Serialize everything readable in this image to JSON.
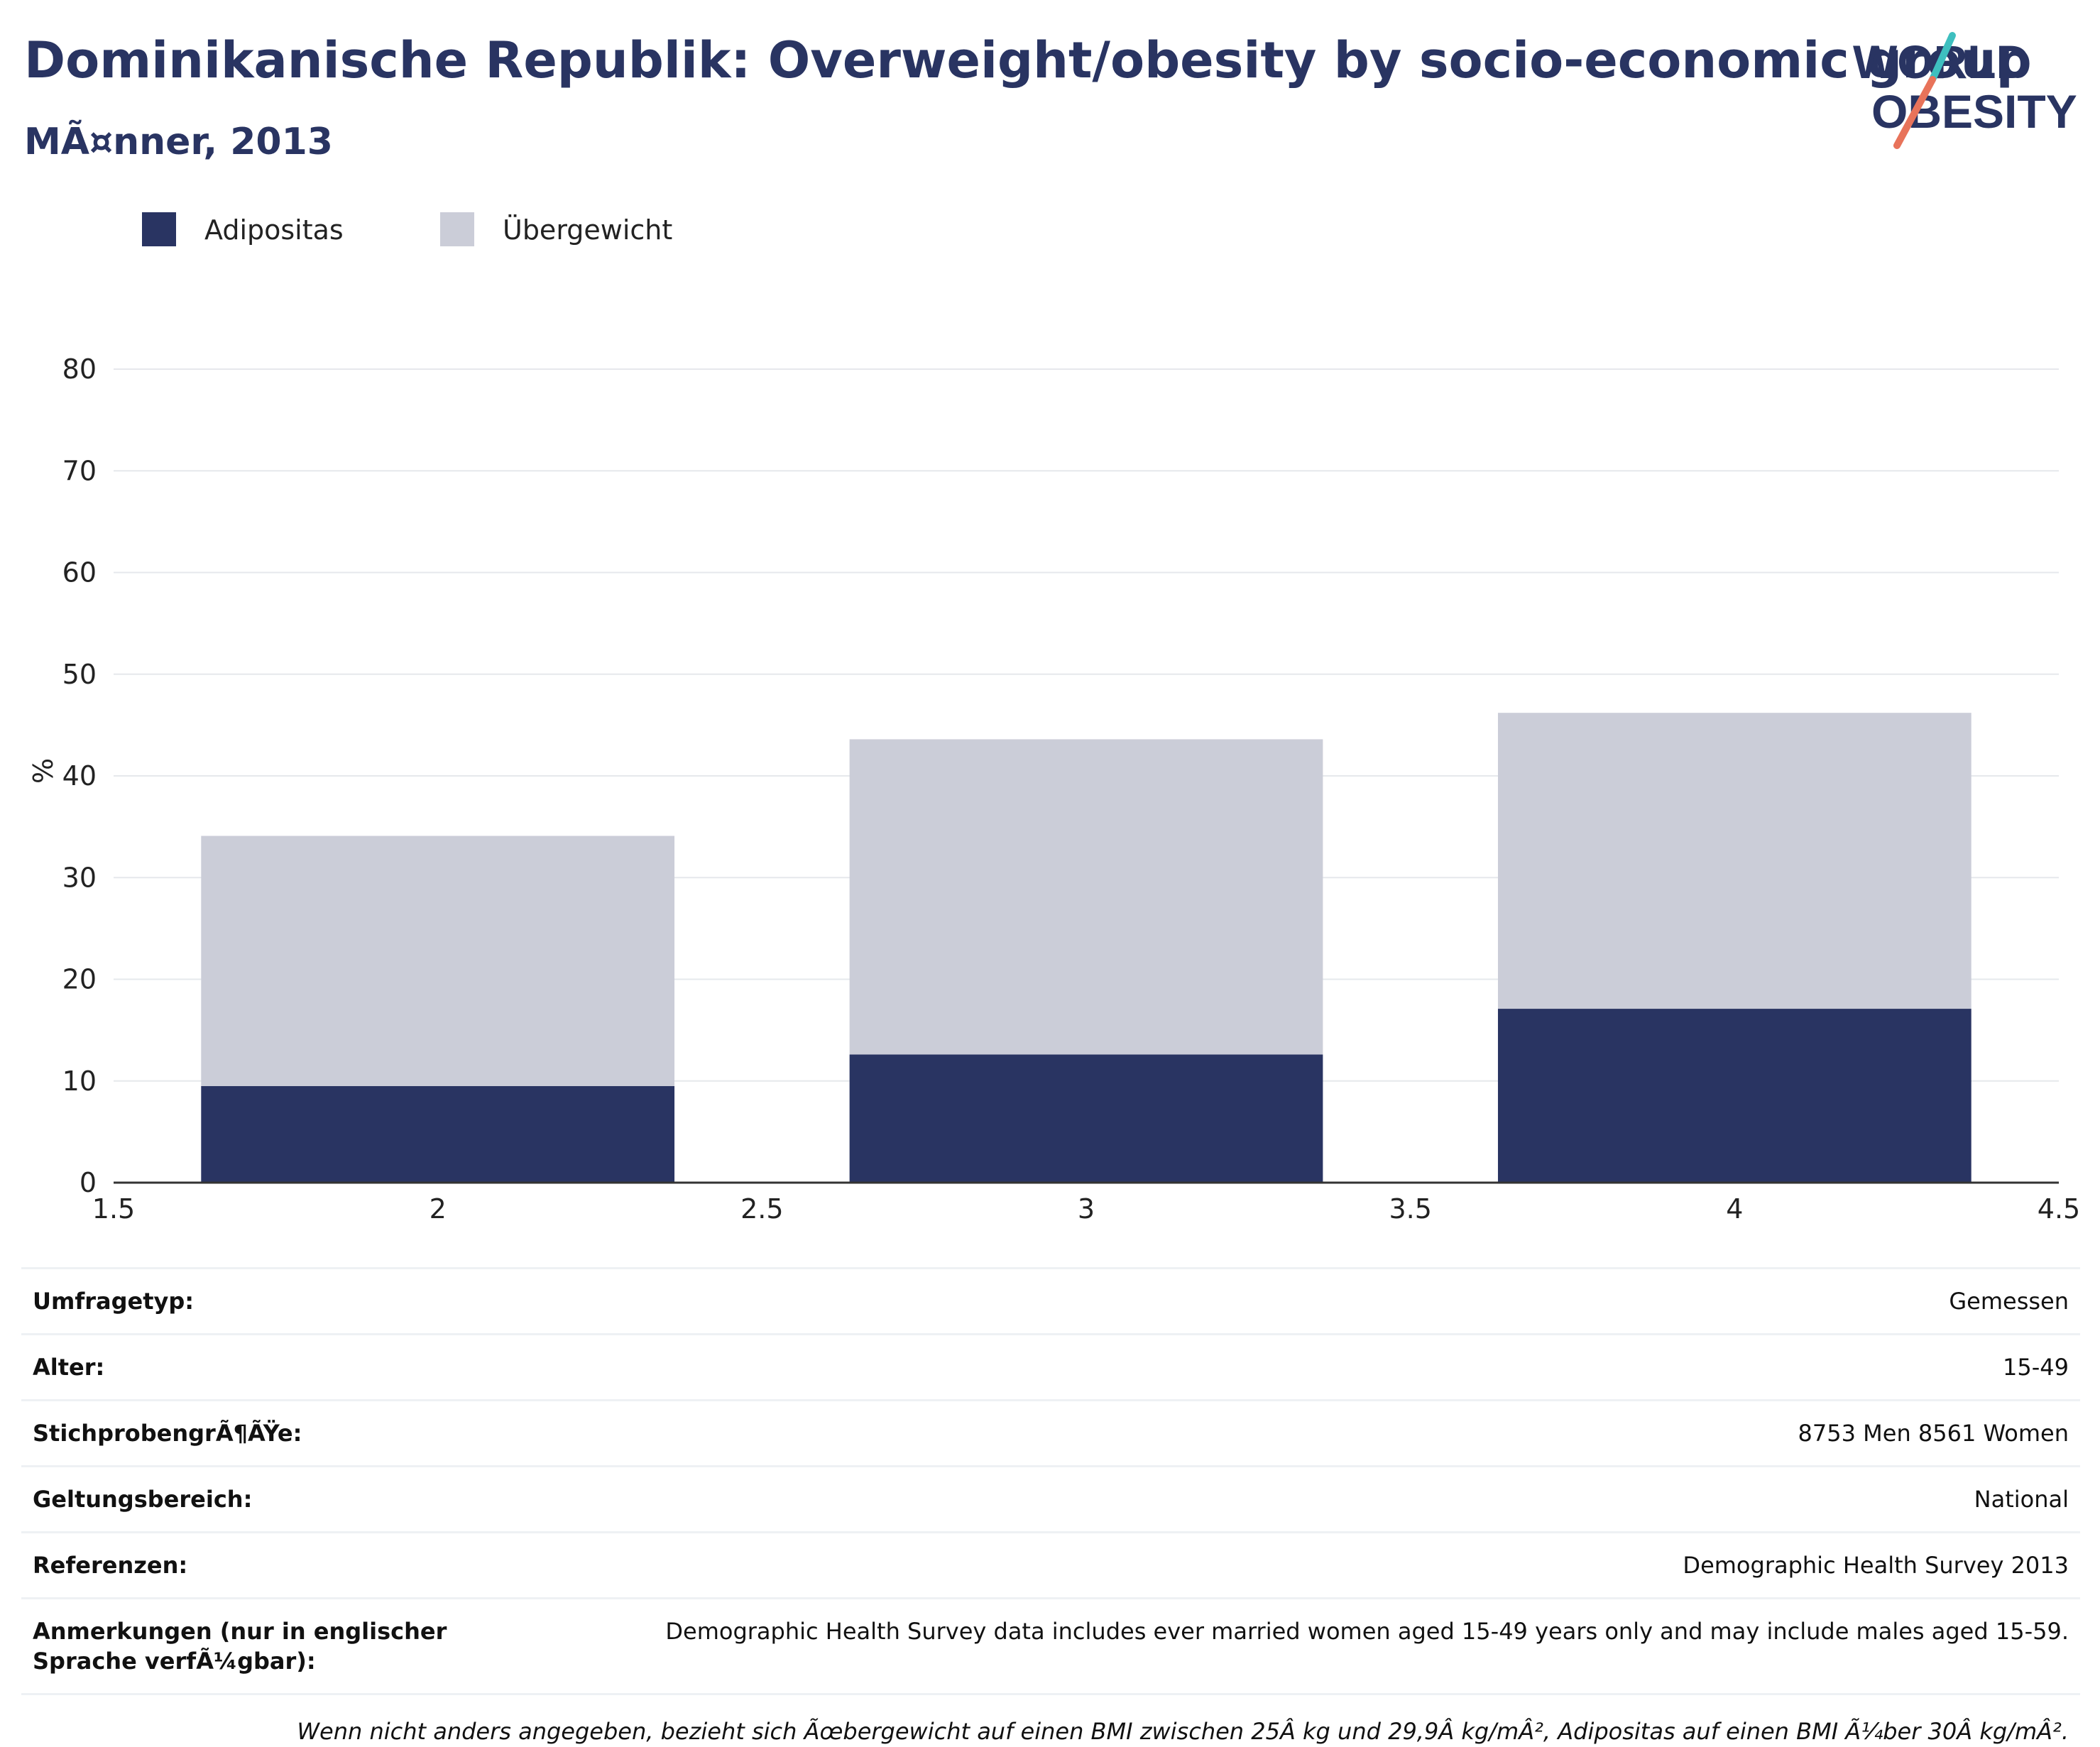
{
  "header": {
    "title": "Dominikanische Republik: Overweight/obesity by socio-economic group",
    "subtitle": "MÃ¤nner, 2013"
  },
  "logo": {
    "line1": "WORLD",
    "line2": "OBESITY",
    "colors": {
      "text": "#293462",
      "slash_teal": "#3ebfbf",
      "slash_coral": "#e8735a"
    }
  },
  "chart_data": {
    "type": "bar",
    "stacked": true,
    "x": [
      2,
      3,
      4
    ],
    "xlim": [
      1.5,
      4.5
    ],
    "x_ticks": [
      "1.5",
      "2",
      "2.5",
      "3",
      "3.5",
      "4",
      "4.5"
    ],
    "x_tick_values": [
      1.5,
      2,
      2.5,
      3,
      3.5,
      4,
      4.5
    ],
    "ylabel": "%",
    "ylim": [
      0,
      80
    ],
    "y_ticks": [
      "0",
      "10",
      "20",
      "30",
      "40",
      "50",
      "60",
      "70",
      "80"
    ],
    "y_tick_values": [
      0,
      10,
      20,
      30,
      40,
      50,
      60,
      70,
      80
    ],
    "grid": true,
    "legend_position": "top-left",
    "series": [
      {
        "name": "Adipositas",
        "color": "#293462",
        "values": [
          9.5,
          12.6,
          17.1
        ]
      },
      {
        "name": "Übergewicht",
        "color": "#cbcdd8",
        "values": [
          24.6,
          31.0,
          29.1
        ]
      }
    ]
  },
  "info": {
    "rows": [
      {
        "label": "Umfragetyp:",
        "value": "Gemessen"
      },
      {
        "label": "Alter:",
        "value": "15-49"
      },
      {
        "label": "StichprobengrÃ¶ÃŸe:",
        "value": "8753 Men 8561 Women"
      },
      {
        "label": "Geltungsbereich:",
        "value": "National"
      },
      {
        "label": "Referenzen:",
        "value": "Demographic Health Survey 2013"
      },
      {
        "label": "Anmerkungen (nur in englischer Sprache verfÃ¼gbar):",
        "value": "Demographic Health Survey data includes ever married women aged 15-49 years only and may include males aged 15-59."
      }
    ],
    "footnote": "Wenn nicht anders angegeben, bezieht sich Ãœbergewicht auf einen BMI zwischen 25Â kg und 29,9Â kg/mÂ², Adipositas auf einen BMI Ã¼ber 30Â kg/mÂ²."
  }
}
